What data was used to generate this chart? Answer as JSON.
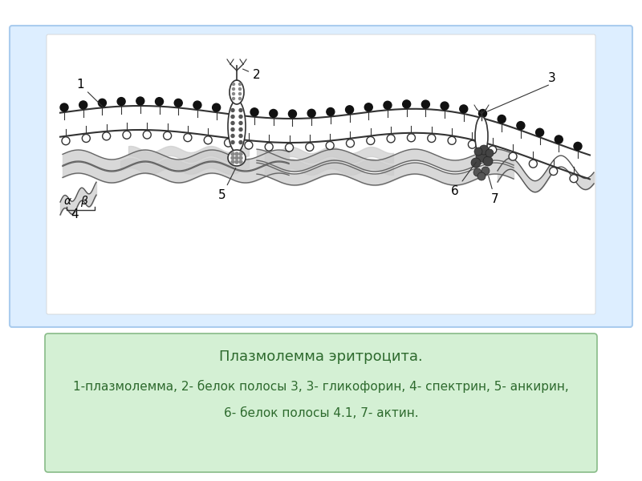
{
  "bg_color": "#ffffff",
  "upper_panel_bg": "#ddeeff",
  "lower_panel_bg": "#d4f0d4",
  "upper_panel_border": "#aaccee",
  "lower_panel_border": "#88bb88",
  "diagram_bg": "#f8f8f8",
  "title_line1": "Плазмолемма эритроцита.",
  "title_line2": "1-плазмолемма, 2- белок полосы 3, 3- гликофорин, 4- спектрин, 5- анкирин,",
  "title_line3": "6- белок полосы 4.1, 7- актин.",
  "text_color": "#2d6a2d",
  "label_color": "#000000",
  "membrane_color": "#222222",
  "lipid_head_color": "#111111",
  "cytoskeleton_color": "#cccccc",
  "cytoskeleton_stroke": "#555555"
}
